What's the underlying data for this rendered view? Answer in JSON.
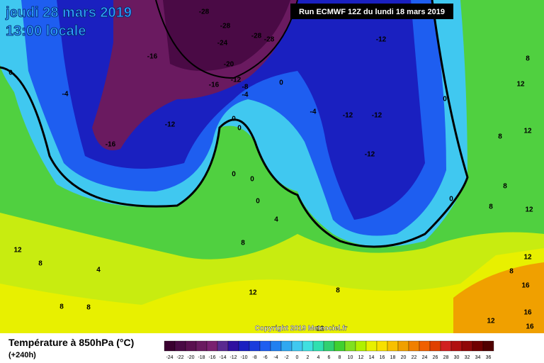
{
  "header": {
    "date": "jeudi 28 mars 2019",
    "time": "13:00 locale",
    "run": "Run ECMWF 12Z du lundi 18 mars 2019"
  },
  "copyright": "Copyright 2019 Meteociel.fr",
  "legend": {
    "title": "Température à 850hPa (°C)",
    "lead": "(+240h)",
    "values": [
      -24,
      -22,
      -20,
      -18,
      -16,
      -14,
      -12,
      -10,
      -8,
      -6,
      -4,
      -2,
      0,
      2,
      4,
      6,
      8,
      10,
      12,
      14,
      16,
      18,
      20,
      22,
      24,
      26,
      28,
      30,
      32,
      34,
      36
    ],
    "colors": [
      "#3a0030",
      "#4a0a45",
      "#5a1050",
      "#6a1a60",
      "#7a2070",
      "#5a2a90",
      "#3010a0",
      "#1a20c0",
      "#1a3cdc",
      "#1e5ef0",
      "#2080f0",
      "#30a8f0",
      "#40c8f0",
      "#40e0e0",
      "#30e0b0",
      "#30d070",
      "#40d030",
      "#80e020",
      "#b0f000",
      "#e8f000",
      "#f8e000",
      "#f8c000",
      "#f0a000",
      "#f08000",
      "#f06000",
      "#e04000",
      "#d02020",
      "#b01010",
      "#900808",
      "#700000",
      "#500000"
    ]
  },
  "map_labels": [
    -28,
    -28,
    -24,
    -28,
    -28,
    -16,
    -20,
    -12,
    -16,
    -8,
    -4,
    -12,
    -16,
    0,
    -4,
    -12,
    0,
    -4,
    -12,
    -12,
    -12,
    0,
    0,
    0,
    0,
    0,
    0,
    0,
    8,
    12,
    8,
    12,
    8,
    8,
    12,
    12,
    8,
    16,
    16,
    16,
    12,
    12,
    8,
    4,
    8,
    4,
    12,
    8,
    8,
    8,
    12
  ]
}
